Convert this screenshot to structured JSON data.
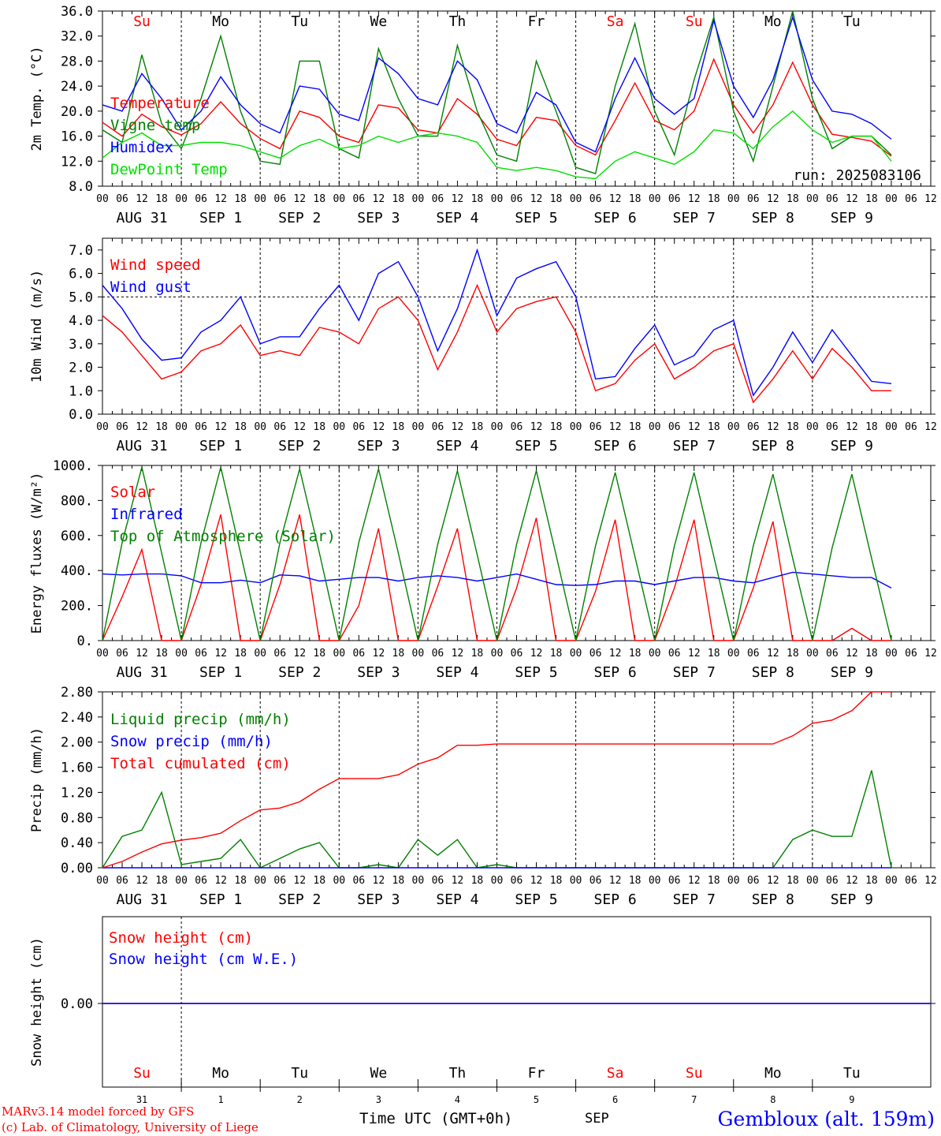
{
  "run_label": "run: 2025083106",
  "colors": {
    "red": "#ff0000",
    "green": "#008000",
    "blue": "#0000ff",
    "lime": "#00e000"
  },
  "footer": {
    "credit_line1": "MARv3.14 model forced by GFS",
    "credit_line2": "(c) Lab. of Climatology, University of Liege",
    "time_label": "Time UTC (GMT+0h)",
    "month_label": "SEP",
    "location": "Gembloux (alt. 159m)"
  },
  "chart_data": [
    {
      "type": "line",
      "ylabel": "2m Temp. (°C)",
      "ylim": [
        8.0,
        36.0
      ],
      "y_ticks": [
        "8.0",
        "12.0",
        "16.0",
        "20.0",
        "24.0",
        "28.0",
        "32.0",
        "36.0"
      ],
      "x_hours": [
        0,
        6,
        12,
        18,
        24,
        30,
        36,
        42,
        48,
        54,
        60,
        66,
        72,
        78,
        84,
        90,
        96,
        102,
        108,
        114,
        120,
        126,
        132,
        138,
        144,
        150,
        156,
        162,
        168,
        174,
        180,
        186,
        192,
        198,
        204,
        210,
        216,
        222,
        228,
        234,
        240
      ],
      "hour_labels": [
        "00",
        "06",
        "12",
        "18"
      ],
      "day_labels": [
        "AUG 31",
        "SEP 1",
        "SEP 2",
        "SEP 3",
        "SEP 4",
        "SEP 5",
        "SEP 6",
        "SEP 7",
        "SEP 8",
        "SEP 9"
      ],
      "weekdays": [
        "Su",
        "Mo",
        "Tu",
        "We",
        "Th",
        "Fr",
        "Sa",
        "Su",
        "Mo",
        "Tu"
      ],
      "weekday_colors": [
        "#ff0000",
        "#000000",
        "#000000",
        "#000000",
        "#000000",
        "#000000",
        "#ff0000",
        "#ff0000",
        "#000000",
        "#000000"
      ],
      "series": [
        {
          "name": "Temperature",
          "color": "#ff0000",
          "values": [
            18.2,
            16.0,
            19.5,
            17.5,
            16.2,
            18.0,
            21.5,
            18.0,
            15.6,
            14.0,
            20.0,
            19.0,
            16.0,
            15.0,
            21.0,
            20.5,
            17.0,
            16.5,
            22.0,
            19.5,
            15.5,
            14.5,
            19.0,
            18.5,
            14.5,
            13.0,
            18.5,
            24.5,
            18.5,
            17.0,
            20.0,
            28.3,
            21.0,
            16.5,
            21.0,
            27.8,
            21.0,
            16.3,
            15.8,
            15.2,
            12.8
          ]
        },
        {
          "name": "Vigne temp",
          "color": "#008000",
          "values": [
            17.0,
            15.0,
            29.0,
            18.0,
            14.0,
            22.0,
            32.0,
            20.0,
            12.0,
            11.5,
            28.0,
            28.0,
            14.0,
            12.5,
            30.0,
            22.0,
            16.0,
            16.0,
            30.5,
            20.0,
            13.0,
            12.0,
            28.0,
            20.0,
            11.0,
            10.0,
            24.0,
            34.0,
            20.0,
            13.0,
            25.0,
            35.0,
            20.0,
            12.0,
            24.0,
            36.0,
            22.0,
            14.0,
            16.0,
            16.0,
            13.0
          ]
        },
        {
          "name": "Humidex",
          "color": "#0000ff",
          "values": [
            21.0,
            20.0,
            26.0,
            22.0,
            17.0,
            20.0,
            25.5,
            21.0,
            18.0,
            16.5,
            24.0,
            23.5,
            19.5,
            18.5,
            28.5,
            26.0,
            22.0,
            21.0,
            28.0,
            25.0,
            18.0,
            16.5,
            23.0,
            21.0,
            15.0,
            13.5,
            22.0,
            28.5,
            22.0,
            19.5,
            22.0,
            34.5,
            24.0,
            19.0,
            25.0,
            35.0,
            25.0,
            20.0,
            19.5,
            18.0,
            15.5
          ]
        },
        {
          "name": "DewPoint Temp",
          "color": "#00e000",
          "values": [
            12.5,
            15.0,
            16.5,
            14.5,
            14.5,
            15.0,
            15.0,
            14.5,
            13.5,
            12.5,
            14.5,
            15.5,
            14.0,
            14.5,
            16.0,
            15.0,
            16.0,
            16.5,
            16.0,
            15.0,
            11.0,
            10.5,
            11.0,
            10.5,
            9.5,
            9.2,
            12.0,
            13.5,
            12.5,
            11.5,
            13.5,
            17.0,
            16.5,
            14.0,
            17.5,
            20.0,
            17.0,
            15.0,
            16.0,
            16.0,
            12.0
          ]
        }
      ]
    },
    {
      "type": "line",
      "ylabel": "10m Wind (m/s)",
      "ylim": [
        0.0,
        7.5
      ],
      "y_ticks": [
        "0.0",
        "1.0",
        "2.0",
        "3.0",
        "4.0",
        "5.0",
        "6.0",
        "7.0"
      ],
      "reference_line": 5.0,
      "series": [
        {
          "name": "Wind speed",
          "color": "#ff0000",
          "values": [
            4.2,
            3.5,
            2.5,
            1.5,
            1.8,
            2.7,
            3.0,
            3.8,
            2.5,
            2.7,
            2.5,
            3.7,
            3.5,
            3.0,
            4.5,
            5.0,
            4.0,
            1.9,
            3.5,
            5.5,
            3.5,
            4.5,
            4.8,
            5.0,
            3.5,
            1.0,
            1.3,
            2.3,
            3.0,
            1.5,
            2.0,
            2.7,
            3.0,
            0.5,
            1.5,
            2.7,
            1.5,
            2.8,
            2.0,
            1.0,
            1.0
          ]
        },
        {
          "name": "Wind gust",
          "color": "#0000ff",
          "values": [
            5.5,
            4.5,
            3.2,
            2.3,
            2.4,
            3.5,
            4.0,
            5.0,
            3.0,
            3.3,
            3.3,
            4.5,
            5.5,
            4.0,
            6.0,
            6.5,
            5.0,
            2.7,
            4.5,
            7.0,
            4.2,
            5.8,
            6.2,
            6.5,
            5.0,
            1.5,
            1.6,
            2.8,
            3.8,
            2.1,
            2.5,
            3.6,
            4.0,
            0.8,
            2.0,
            3.5,
            2.2,
            3.6,
            2.5,
            1.4,
            1.3
          ]
        }
      ]
    },
    {
      "type": "line",
      "ylabel": "Energy fluxes (W/m²)",
      "ylim": [
        0,
        1000
      ],
      "y_ticks": [
        "0.",
        "200.",
        "400.",
        "600.",
        "800.",
        "1000."
      ],
      "series": [
        {
          "name": "Solar",
          "color": "#ff0000",
          "values": [
            0,
            250,
            520,
            0,
            0,
            320,
            720,
            0,
            0,
            320,
            720,
            0,
            0,
            200,
            640,
            0,
            0,
            310,
            640,
            0,
            0,
            300,
            700,
            0,
            0,
            280,
            690,
            0,
            0,
            300,
            690,
            0,
            0,
            300,
            680,
            0,
            0,
            0,
            70,
            0,
            0
          ]
        },
        {
          "name": "Infrared",
          "color": "#0000ff",
          "values": [
            380,
            375,
            380,
            380,
            370,
            330,
            330,
            345,
            330,
            375,
            370,
            340,
            350,
            360,
            360,
            340,
            360,
            370,
            360,
            340,
            360,
            380,
            350,
            320,
            315,
            320,
            340,
            340,
            320,
            340,
            360,
            360,
            340,
            330,
            360,
            390,
            380,
            370,
            360,
            360,
            300
          ]
        },
        {
          "name": "Top of Atmosphere (Solar)",
          "color": "#008000",
          "values": [
            0,
            560,
            990,
            500,
            0,
            560,
            990,
            500,
            0,
            560,
            980,
            500,
            0,
            560,
            980,
            500,
            0,
            550,
            970,
            490,
            0,
            550,
            970,
            490,
            0,
            540,
            960,
            480,
            0,
            540,
            960,
            480,
            0,
            540,
            950,
            470,
            0,
            530,
            950,
            470,
            0
          ]
        }
      ]
    },
    {
      "type": "line",
      "ylabel": "Precip (mm/h)",
      "ylim": [
        0.0,
        2.8
      ],
      "y_ticks": [
        "0.00",
        "0.40",
        "0.80",
        "1.20",
        "1.60",
        "2.00",
        "2.40",
        "2.80"
      ],
      "series": [
        {
          "name": "Liquid precip (mm/h)",
          "color": "#008000",
          "values": [
            0.0,
            0.5,
            0.6,
            1.2,
            0.05,
            0.1,
            0.15,
            0.45,
            0.0,
            0.15,
            0.3,
            0.4,
            0.0,
            0.0,
            0.05,
            0.0,
            0.45,
            0.2,
            0.45,
            0.0,
            0.05,
            0.0,
            0.0,
            0.0,
            0.0,
            0.0,
            0.0,
            0.0,
            0.0,
            0.0,
            0.0,
            0.0,
            0.0,
            0.0,
            0.0,
            0.45,
            0.6,
            0.5,
            0.5,
            1.55,
            0.0
          ]
        },
        {
          "name": "Snow precip (mm/h)",
          "color": "#0000ff",
          "values": [
            0,
            0,
            0,
            0,
            0,
            0,
            0,
            0,
            0,
            0,
            0,
            0,
            0,
            0,
            0,
            0,
            0,
            0,
            0,
            0,
            0,
            0,
            0,
            0,
            0,
            0,
            0,
            0,
            0,
            0,
            0,
            0,
            0,
            0,
            0,
            0,
            0,
            0,
            0,
            0,
            0
          ]
        },
        {
          "name": "Total cumulated (cm)",
          "color": "#ff0000",
          "values": [
            0.0,
            0.1,
            0.25,
            0.38,
            0.44,
            0.48,
            0.55,
            0.75,
            0.92,
            0.95,
            1.05,
            1.25,
            1.42,
            1.42,
            1.42,
            1.48,
            1.65,
            1.75,
            1.95,
            1.95,
            1.97,
            1.97,
            1.97,
            1.97,
            1.97,
            1.97,
            1.97,
            1.97,
            1.97,
            1.97,
            1.97,
            1.97,
            1.97,
            1.97,
            1.97,
            2.1,
            2.3,
            2.35,
            2.5,
            2.8,
            2.8
          ]
        }
      ]
    },
    {
      "type": "line",
      "ylabel": "Snow height (cm)",
      "y_ticks": [
        "0.00"
      ],
      "day_numbers": [
        "31",
        "1",
        "2",
        "3",
        "4",
        "5",
        "6",
        "7",
        "8",
        "9"
      ],
      "series": [
        {
          "name": "Snow height (cm)",
          "color": "#ff0000",
          "values": [
            0,
            0
          ]
        },
        {
          "name": "Snow height (cm W.E.)",
          "color": "#0000ff",
          "values": [
            0,
            0
          ]
        }
      ]
    }
  ]
}
